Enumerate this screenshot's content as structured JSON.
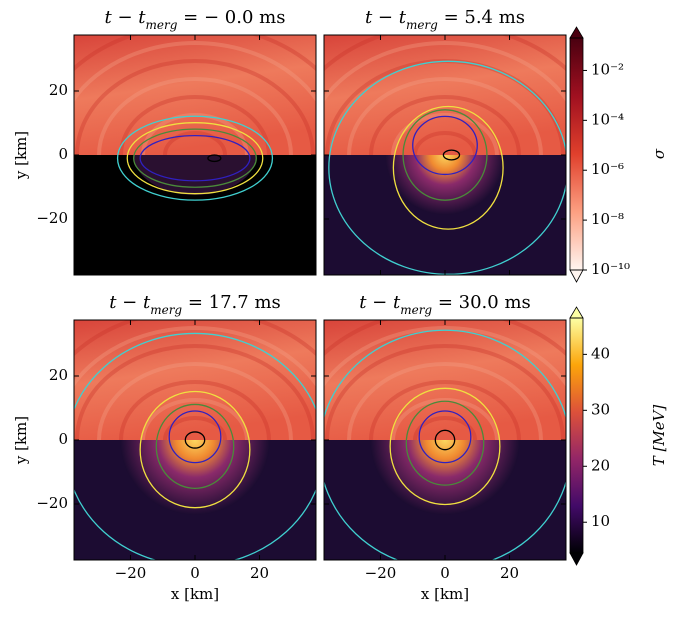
{
  "chart_data": [
    {
      "type": "heatmap",
      "title": [
        "t − t",
        "merg",
        " = − 0.0 ms"
      ],
      "xlim": [
        -37.5,
        37.5
      ],
      "ylim": [
        -37.5,
        37.5
      ],
      "xticks": [
        {
          "value": -20,
          "label": "−20"
        },
        0,
        20
      ],
      "yticks": [
        {
          "value": -20,
          "label": "−20"
        },
        0,
        20
      ],
      "ylabel": "y [km]",
      "xtick_labels": false,
      "ytick_labels": true
    },
    {
      "type": "heatmap",
      "title": [
        "t − t",
        "merg",
        " = 5.4 ms"
      ],
      "xlim": [
        -37.5,
        37.5
      ],
      "ylim": [
        -37.5,
        37.5
      ],
      "xticks": [
        {
          "value": -20,
          "label": "−20"
        },
        0,
        20
      ],
      "yticks": [
        {
          "value": -20,
          "label": "−20"
        },
        0,
        20
      ],
      "xtick_labels": false,
      "ytick_labels": false
    },
    {
      "type": "heatmap",
      "title": [
        "t − t",
        "merg",
        " = 17.7 ms"
      ],
      "xlim": [
        -37.5,
        37.5
      ],
      "ylim": [
        -37.5,
        37.5
      ],
      "xticks": [
        {
          "value": -20,
          "label": "−20"
        },
        0,
        20
      ],
      "yticks": [
        {
          "value": -20,
          "label": "−20"
        },
        0,
        20
      ],
      "xlabel": "x [km]",
      "ylabel": "y [km]",
      "xtick_labels": true,
      "ytick_labels": true
    },
    {
      "type": "heatmap",
      "title": [
        "t − t",
        "merg",
        " = 30.0 ms"
      ],
      "xlim": [
        -37.5,
        37.5
      ],
      "ylim": [
        -37.5,
        37.5
      ],
      "xticks": [
        {
          "value": -20,
          "label": "−20"
        },
        0,
        20
      ],
      "yticks": [
        {
          "value": -20,
          "label": "−20"
        },
        0,
        20
      ],
      "xlabel": "x [km]",
      "xtick_labels": true,
      "ytick_labels": false
    },
    {
      "type": "colorbar",
      "label": "σ",
      "log": true,
      "ylim": [
        1e-10,
        0.2
      ],
      "yticks": [
        {
          "value": 1e-10,
          "label": "10⁻¹⁰"
        },
        {
          "value": 1e-08,
          "label": "10⁻⁸"
        },
        {
          "value": 1e-06,
          "label": "10⁻⁶"
        },
        {
          "value": 0.0001,
          "label": "10⁻⁴"
        },
        {
          "value": 0.01,
          "label": "10⁻²"
        }
      ],
      "colors": [
        "#fff5f0",
        "#fca082",
        "#e0402c",
        "#a01020",
        "#4a0010"
      ]
    },
    {
      "type": "colorbar",
      "label": "T [MeV]",
      "log": false,
      "ylim": [
        4.5,
        46.5
      ],
      "yticks": [
        10,
        20,
        30,
        40
      ],
      "colors": [
        "#000004",
        "#420a68",
        "#932667",
        "#dd513a",
        "#fca50a",
        "#fcffa4"
      ]
    }
  ]
}
